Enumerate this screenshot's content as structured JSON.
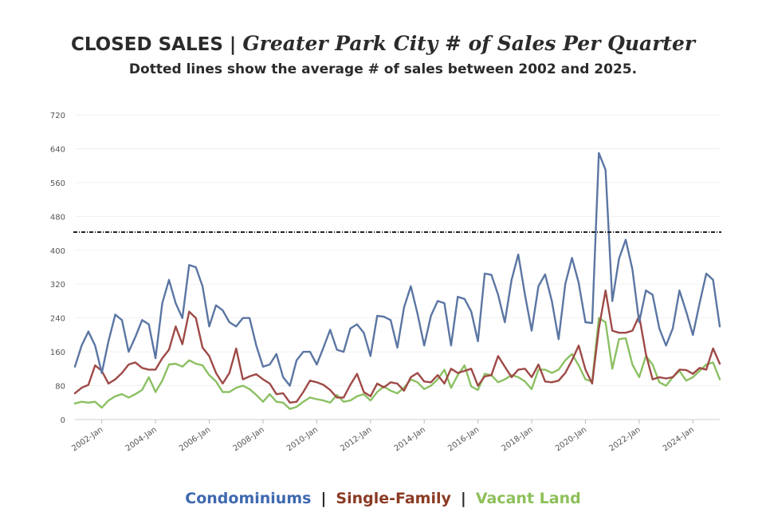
{
  "header": {
    "title": "CLOSED SALES",
    "separator": "|",
    "title_sub": "Greater Park City # of Sales Per Quarter",
    "subtitle": "Dotted lines show the average # of sales between 2002 and 2025."
  },
  "legend": {
    "separator": "|",
    "items": [
      {
        "label": "Condominiums",
        "color": "#3f68b0"
      },
      {
        "label": "Single-Family",
        "color": "#8b3a24"
      },
      {
        "label": "Vacant Land",
        "color": "#8dc05a"
      }
    ]
  },
  "chart_data": {
    "type": "line",
    "ylim": [
      0,
      720
    ],
    "y_ticks": [
      "0",
      "80",
      "160",
      "240",
      "320",
      "400",
      "480",
      "560",
      "640",
      "720"
    ],
    "x_start": "2001-Q1",
    "x_ticks": [
      {
        "label": "2002-Jan",
        "index": 4
      },
      {
        "label": "2004-Jan",
        "index": 12
      },
      {
        "label": "2006-Jan",
        "index": 20
      },
      {
        "label": "2008-Jan",
        "index": 28
      },
      {
        "label": "2010-Jan",
        "index": 36
      },
      {
        "label": "2012-Jan",
        "index": 44
      },
      {
        "label": "2014-Jan",
        "index": 52
      },
      {
        "label": "2016-Jan",
        "index": 60
      },
      {
        "label": "2018-Jan",
        "index": 68
      },
      {
        "label": "2020-Jan",
        "index": 76
      },
      {
        "label": "2022-Jan",
        "index": 84
      },
      {
        "label": "2024-Jan",
        "index": 92
      }
    ],
    "average_line": {
      "value": 443,
      "style": "dotted",
      "color": "#222222"
    },
    "series": [
      {
        "name": "Condominiums",
        "color": "#5b76a3",
        "values": [
          125,
          175,
          208,
          175,
          110,
          185,
          248,
          235,
          160,
          195,
          235,
          225,
          145,
          275,
          330,
          275,
          240,
          365,
          360,
          315,
          220,
          270,
          258,
          230,
          220,
          240,
          240,
          175,
          125,
          130,
          155,
          100,
          80,
          140,
          160,
          160,
          130,
          170,
          212,
          165,
          160,
          215,
          225,
          205,
          150,
          245,
          243,
          235,
          170,
          265,
          315,
          250,
          175,
          245,
          280,
          275,
          175,
          290,
          285,
          255,
          185,
          345,
          342,
          295,
          230,
          330,
          390,
          295,
          210,
          315,
          343,
          280,
          190,
          320,
          382,
          323,
          230,
          228,
          630,
          590,
          280,
          380,
          425,
          355,
          230,
          305,
          295,
          215,
          175,
          215,
          305,
          255,
          200,
          275,
          345,
          330,
          220
        ]
      },
      {
        "name": "Single-Family",
        "color": "#9e4a47",
        "values": [
          62,
          75,
          82,
          128,
          115,
          85,
          95,
          110,
          130,
          135,
          122,
          118,
          118,
          145,
          165,
          220,
          178,
          255,
          240,
          170,
          150,
          110,
          85,
          110,
          168,
          95,
          102,
          107,
          95,
          85,
          60,
          62,
          40,
          42,
          65,
          92,
          88,
          82,
          70,
          52,
          52,
          82,
          108,
          65,
          55,
          85,
          76,
          88,
          85,
          68,
          100,
          110,
          90,
          88,
          105,
          85,
          120,
          110,
          115,
          120,
          80,
          102,
          105,
          150,
          125,
          100,
          118,
          120,
          100,
          130,
          90,
          88,
          92,
          110,
          140,
          175,
          118,
          85,
          215,
          305,
          210,
          205,
          205,
          210,
          245,
          155,
          95,
          100,
          97,
          100,
          118,
          117,
          108,
          122,
          118,
          168,
          132
        ]
      },
      {
        "name": "Vacant Land",
        "color": "#8cc063",
        "values": [
          38,
          42,
          40,
          42,
          28,
          45,
          55,
          60,
          52,
          60,
          70,
          100,
          65,
          92,
          130,
          132,
          125,
          140,
          132,
          128,
          105,
          90,
          65,
          65,
          75,
          80,
          72,
          58,
          42,
          60,
          42,
          40,
          25,
          30,
          42,
          52,
          48,
          45,
          40,
          58,
          42,
          45,
          55,
          60,
          45,
          65,
          78,
          68,
          62,
          75,
          95,
          88,
          72,
          80,
          95,
          118,
          75,
          105,
          128,
          78,
          70,
          108,
          105,
          88,
          95,
          105,
          100,
          90,
          72,
          118,
          118,
          110,
          118,
          140,
          155,
          128,
          95,
          90,
          240,
          230,
          120,
          190,
          192,
          130,
          100,
          150,
          130,
          88,
          80,
          100,
          115,
          92,
          100,
          115,
          130,
          135,
          95
        ]
      }
    ]
  }
}
